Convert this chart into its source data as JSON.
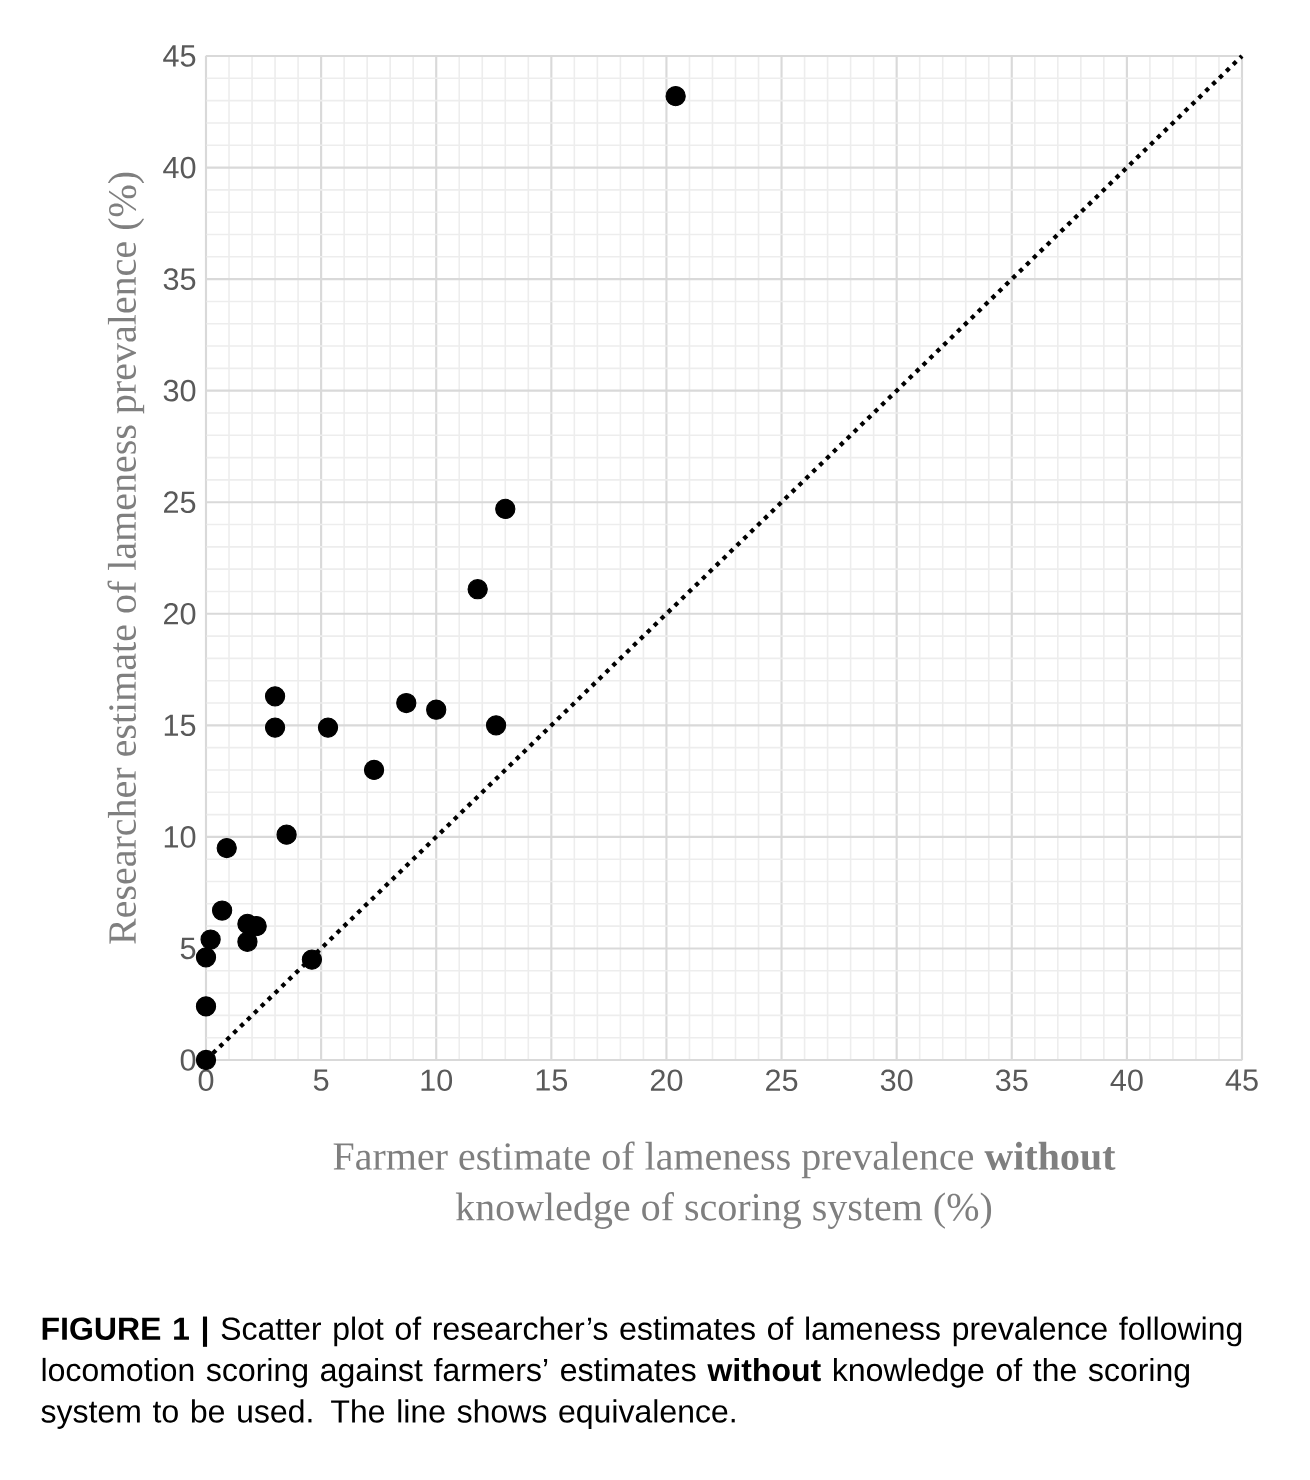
{
  "chart_data": {
    "type": "scatter",
    "xlabel": "Farmer estimate of lameness prevalence **without** knowledge of scoring system (%)",
    "ylabel": "Researcher estimate of lameness prevalence (%)",
    "annotations": [
      "**FIGURE 1 |** Scatter plot of researcher’s estimates of lameness prevalence following locomotion scoring against farmers’ estimates **without** knowledge of the scoring system to be used. The line shows equivalence."
    ],
    "xlim": [
      0,
      45
    ],
    "ylim": [
      0,
      45
    ],
    "xticks": [
      0,
      5,
      10,
      15,
      20,
      25,
      30,
      35,
      40,
      45
    ],
    "yticks": [
      0,
      5,
      10,
      15,
      20,
      25,
      30,
      35,
      40,
      45
    ],
    "grid": true,
    "marker": "circle",
    "series": [
      {
        "type": "scatter",
        "color": "#000000",
        "x": [
          0,
          0,
          0,
          0.2,
          0.7,
          0.9,
          1.8,
          1.8,
          2.2,
          4.6,
          3.5,
          5.3,
          7.3,
          8.7,
          10.0,
          12.6,
          11.8,
          3.0,
          3.0,
          13.0,
          20.4
        ],
        "values": [
          0,
          2.4,
          4.6,
          5.4,
          6.7,
          9.5,
          6.1,
          5.3,
          6.0,
          4.5,
          10.1,
          14.9,
          13.0,
          16.0,
          15.7,
          15.0,
          21.1,
          16.3,
          14.9,
          24.7,
          43.2
        ]
      },
      {
        "type": "line",
        "color": "#000000",
        "line_style": "dotted",
        "marker": "none",
        "x": [
          0,
          45
        ],
        "values": [
          0,
          45
        ]
      }
    ]
  }
}
